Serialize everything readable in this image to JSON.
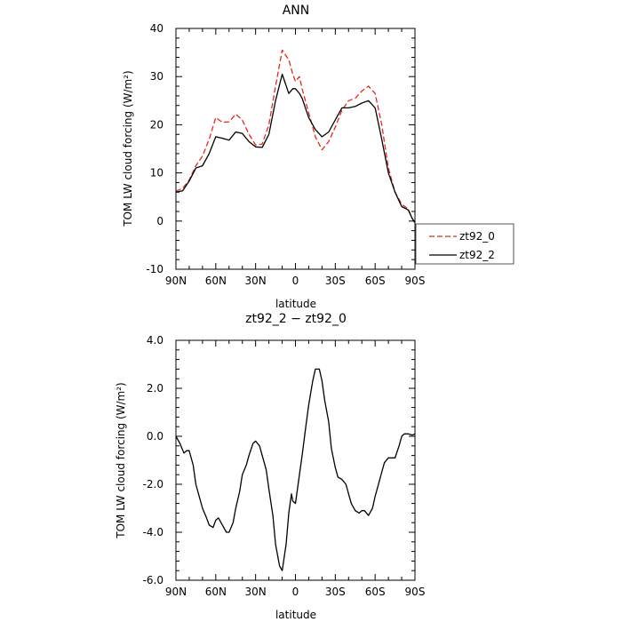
{
  "chart_data": [
    {
      "type": "line",
      "title": "ANN",
      "xlabel": "latitude",
      "ylabel": "TOM LW cloud forcing (W/m²)",
      "xlim": [
        90,
        -90
      ],
      "ylim": [
        -10,
        40
      ],
      "xticks": [
        90,
        60,
        30,
        0,
        -30,
        -60,
        -90
      ],
      "xtick_labels": [
        "90N",
        "60N",
        "30N",
        "0",
        "30S",
        "60S",
        "90S"
      ],
      "yticks": [
        -10,
        0,
        10,
        20,
        30,
        40
      ],
      "ytick_labels": [
        "-10",
        "0",
        "10",
        "20",
        "30",
        "40"
      ],
      "grid": false,
      "legend": {
        "placement": "right-outside",
        "entries": [
          "zt92_0",
          "zt92_2"
        ]
      },
      "series": [
        {
          "name": "zt92_0",
          "color": "#e8251c",
          "style": "dashed",
          "x": [
            90,
            85,
            80,
            75,
            70,
            65,
            60,
            55,
            50,
            45,
            40,
            35,
            30,
            25,
            20,
            15,
            10,
            5,
            2,
            0,
            -3,
            -5,
            -10,
            -15,
            -20,
            -25,
            -30,
            -35,
            -40,
            -45,
            -50,
            -55,
            -60,
            -65,
            -70,
            -75,
            -80,
            -85,
            -88,
            -90
          ],
          "values": [
            6.2,
            6.8,
            8.5,
            11.5,
            13.5,
            17.0,
            21.5,
            20.5,
            20.6,
            22.2,
            21.0,
            18.0,
            15.8,
            16.0,
            20.0,
            28.0,
            35.5,
            33.5,
            30.5,
            29.0,
            30.0,
            27.5,
            22.5,
            17.5,
            14.8,
            16.5,
            19.5,
            23.0,
            25.0,
            25.5,
            27.0,
            28.0,
            26.5,
            20.0,
            11.0,
            6.0,
            3.5,
            2.5,
            0.5,
            -0.5
          ]
        },
        {
          "name": "zt92_2",
          "color": "#000000",
          "style": "solid",
          "x": [
            90,
            85,
            80,
            75,
            70,
            65,
            60,
            55,
            50,
            45,
            40,
            35,
            30,
            25,
            20,
            15,
            10,
            5,
            2,
            0,
            -3,
            -5,
            -10,
            -15,
            -20,
            -25,
            -30,
            -35,
            -40,
            -45,
            -50,
            -55,
            -60,
            -65,
            -70,
            -75,
            -80,
            -85,
            -88,
            -90
          ],
          "values": [
            6.0,
            6.3,
            8.3,
            11.0,
            11.5,
            14.0,
            17.5,
            17.2,
            16.8,
            18.5,
            18.2,
            16.5,
            15.4,
            15.3,
            18.0,
            25.0,
            30.5,
            26.5,
            27.5,
            27.5,
            26.5,
            25.5,
            21.5,
            19.0,
            17.5,
            18.5,
            21.0,
            23.5,
            23.5,
            23.8,
            24.5,
            25.0,
            23.5,
            17.0,
            10.0,
            6.0,
            3.0,
            2.3,
            0.5,
            -0.3
          ]
        }
      ]
    },
    {
      "type": "line",
      "title": "zt92_2 − zt92_0",
      "xlabel": "latitude",
      "ylabel": "TOM LW cloud forcing (W/m²)",
      "xlim": [
        90,
        -90
      ],
      "ylim": [
        -6,
        4
      ],
      "xticks": [
        90,
        60,
        30,
        0,
        -30,
        -60,
        -90
      ],
      "xtick_labels": [
        "90N",
        "60N",
        "30N",
        "0",
        "30S",
        "60S",
        "90S"
      ],
      "yticks": [
        -6,
        -4,
        -2,
        0,
        2,
        4
      ],
      "ytick_labels": [
        "-6.0",
        "-4.0",
        "-2.0",
        "0.0",
        "2.0",
        "4.0"
      ],
      "grid": false,
      "series": [
        {
          "color": "#000000",
          "style": "solid",
          "x": [
            90,
            87,
            84,
            82,
            80,
            77,
            75,
            72,
            70,
            67,
            65,
            62,
            60,
            58,
            55,
            52,
            50,
            47,
            45,
            42,
            40,
            37,
            35,
            32,
            30,
            27,
            25,
            22,
            20,
            17,
            15,
            12,
            10,
            7,
            5,
            3,
            2,
            0,
            -2,
            -5,
            -8,
            -10,
            -13,
            -15,
            -18,
            -20,
            -22,
            -25,
            -27,
            -30,
            -32,
            -35,
            -38,
            -40,
            -42,
            -45,
            -48,
            -50,
            -52,
            -55,
            -58,
            -60,
            -62,
            -65,
            -67,
            -70,
            -72,
            -75,
            -78,
            -80,
            -82,
            -85,
            -88,
            -90
          ],
          "values": [
            0.0,
            -0.3,
            -0.7,
            -0.6,
            -0.6,
            -1.2,
            -2.0,
            -2.6,
            -3.0,
            -3.4,
            -3.7,
            -3.8,
            -3.5,
            -3.4,
            -3.7,
            -4.0,
            -4.0,
            -3.6,
            -3.0,
            -2.3,
            -1.6,
            -1.2,
            -0.8,
            -0.3,
            -0.2,
            -0.4,
            -0.8,
            -1.4,
            -2.2,
            -3.3,
            -4.5,
            -5.4,
            -5.6,
            -4.5,
            -3.2,
            -2.4,
            -2.7,
            -2.8,
            -2.0,
            -0.8,
            0.5,
            1.3,
            2.3,
            2.8,
            2.8,
            2.3,
            1.5,
            0.6,
            -0.5,
            -1.3,
            -1.7,
            -1.8,
            -2.0,
            -2.4,
            -2.8,
            -3.1,
            -3.2,
            -3.1,
            -3.1,
            -3.3,
            -3.0,
            -2.5,
            -2.1,
            -1.5,
            -1.1,
            -0.9,
            -0.9,
            -0.9,
            -0.4,
            0.0,
            0.1,
            0.1,
            0.05,
            0.1
          ]
        }
      ]
    }
  ]
}
